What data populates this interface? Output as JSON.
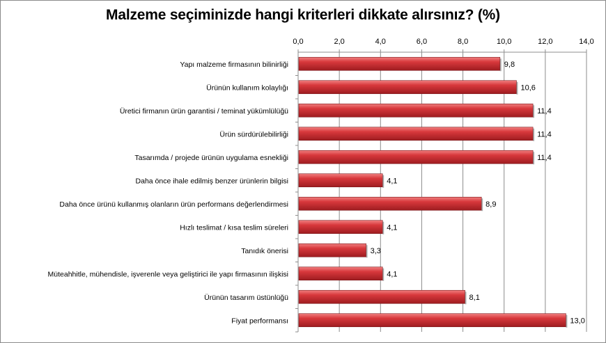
{
  "chart_data": {
    "type": "bar",
    "orientation": "horizontal",
    "title": "Malzeme seçiminizde hangi kriterleri dikkate alırsınız? (%)",
    "xlim": [
      0,
      14
    ],
    "x_ticks": [
      "0,0",
      "2,0",
      "4,0",
      "6,0",
      "8,0",
      "10,0",
      "12,0",
      "14,0"
    ],
    "x_tick_values": [
      0,
      2,
      4,
      6,
      8,
      10,
      12,
      14
    ],
    "x_axis_position": "top",
    "grid": true,
    "legend": "none",
    "bar_color": "#c0282d",
    "categories": [
      "Yapı malzeme firmasının bilinirliği",
      "Ürünün kullanım kolaylığı",
      "Üretici firmanın ürün garantisi / teminat yükümlülüğü",
      "Ürün sürdürülebilirliği",
      "Tasarımda / projede ürünün uygulama esnekliği",
      "Daha önce ihale edilmiş benzer ürünlerin bilgisi",
      "Daha önce ürünü kullanmış olanların ürün performans değerlendirmesi",
      "Hızlı teslimat / kısa teslim süreleri",
      "Tanıdık önerisi",
      "Müteahhitle, mühendisle, işverenle veya geliştirici ile yapı firmasının ilişkisi",
      "Ürünün tasarım üstünlüğü",
      "Fiyat performansı"
    ],
    "values": [
      9.8,
      10.6,
      11.4,
      11.4,
      11.4,
      4.1,
      8.9,
      4.1,
      3.3,
      4.1,
      8.1,
      13.0
    ],
    "data_labels": [
      "9,8",
      "10,6",
      "11,4",
      "11,4",
      "11,4",
      "4,1",
      "8,9",
      "4,1",
      "3,3",
      "4,1",
      "8,1",
      "13,0"
    ]
  }
}
